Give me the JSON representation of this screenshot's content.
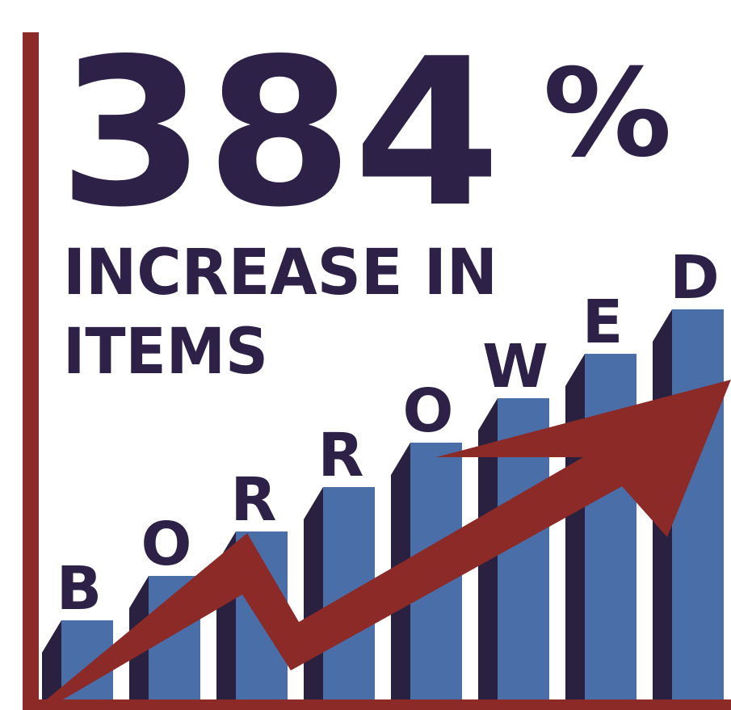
{
  "headline": {
    "figure": "384",
    "percent_sign": "%",
    "line1": "INCREASE IN",
    "line2": "ITEMS"
  },
  "bar_letters": [
    "B",
    "O",
    "R",
    "R",
    "O",
    "W",
    "E",
    "D"
  ],
  "colors": {
    "headline": "#2d2148",
    "bar_front": "#4a6fa8",
    "bar_side": "#2a2040",
    "arrow": "#8b2a27",
    "axis": "#8b2a27",
    "background": "#ffffff"
  }
}
